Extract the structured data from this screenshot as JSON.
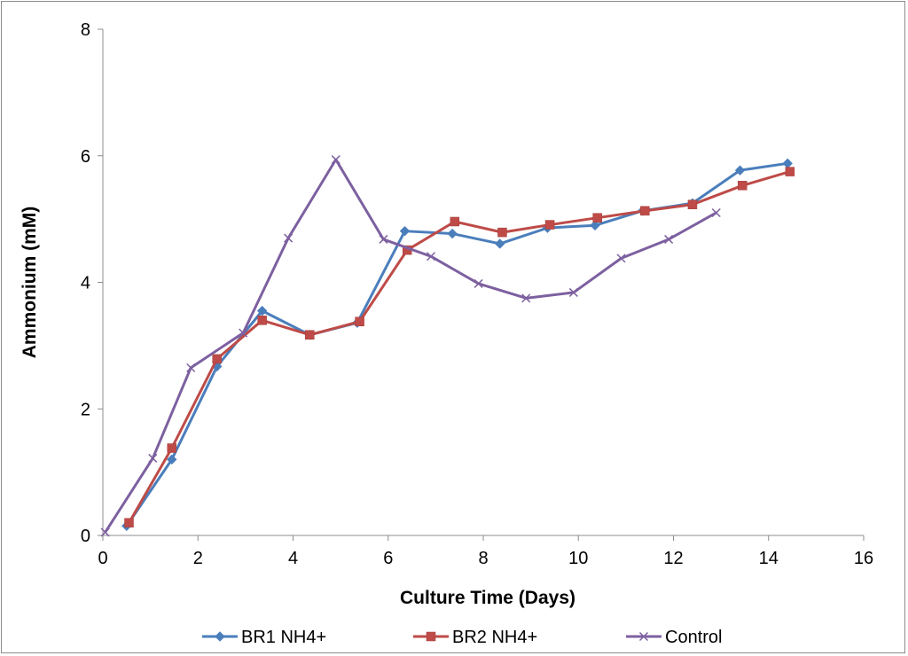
{
  "chart_data": {
    "type": "line",
    "title": "",
    "xlabel": "Culture Time (Days)",
    "ylabel": "Ammonium (mM)",
    "xlim": [
      0,
      16
    ],
    "ylim": [
      0,
      8
    ],
    "xticks": [
      0,
      2,
      4,
      6,
      8,
      10,
      12,
      14,
      16
    ],
    "yticks": [
      0,
      2,
      4,
      6,
      8
    ],
    "grid": false,
    "legend_position": "bottom",
    "series": [
      {
        "name": "BR1 NH4+",
        "color": "#4a7ebb",
        "marker": "diamond",
        "x": [
          0.5,
          1.45,
          2.4,
          3.35,
          4.35,
          5.35,
          6.35,
          7.35,
          8.35,
          9.35,
          10.35,
          11.35,
          12.4,
          13.4,
          14.4
        ],
        "y": [
          0.15,
          1.2,
          2.67,
          3.55,
          3.17,
          3.36,
          4.81,
          4.77,
          4.61,
          4.86,
          4.9,
          5.13,
          5.25,
          5.77,
          5.88
        ]
      },
      {
        "name": "BR2 NH4+",
        "color": "#be4b48",
        "marker": "square",
        "x": [
          0.55,
          1.45,
          2.4,
          3.35,
          4.35,
          5.4,
          6.4,
          7.4,
          8.4,
          9.4,
          10.4,
          11.4,
          12.4,
          13.45,
          14.45
        ],
        "y": [
          0.2,
          1.38,
          2.79,
          3.4,
          3.17,
          3.38,
          4.51,
          4.96,
          4.79,
          4.91,
          5.02,
          5.13,
          5.23,
          5.53,
          5.75
        ]
      },
      {
        "name": "Control",
        "color": "#7d60a0",
        "marker": "x",
        "x": [
          0.05,
          1.05,
          1.85,
          2.95,
          3.9,
          4.9,
          5.9,
          6.9,
          7.9,
          8.9,
          9.9,
          10.9,
          11.9,
          12.9
        ],
        "y": [
          0.05,
          1.22,
          2.65,
          3.2,
          4.7,
          5.94,
          4.68,
          4.41,
          3.98,
          3.75,
          3.84,
          4.38,
          4.68,
          5.1
        ]
      }
    ]
  }
}
